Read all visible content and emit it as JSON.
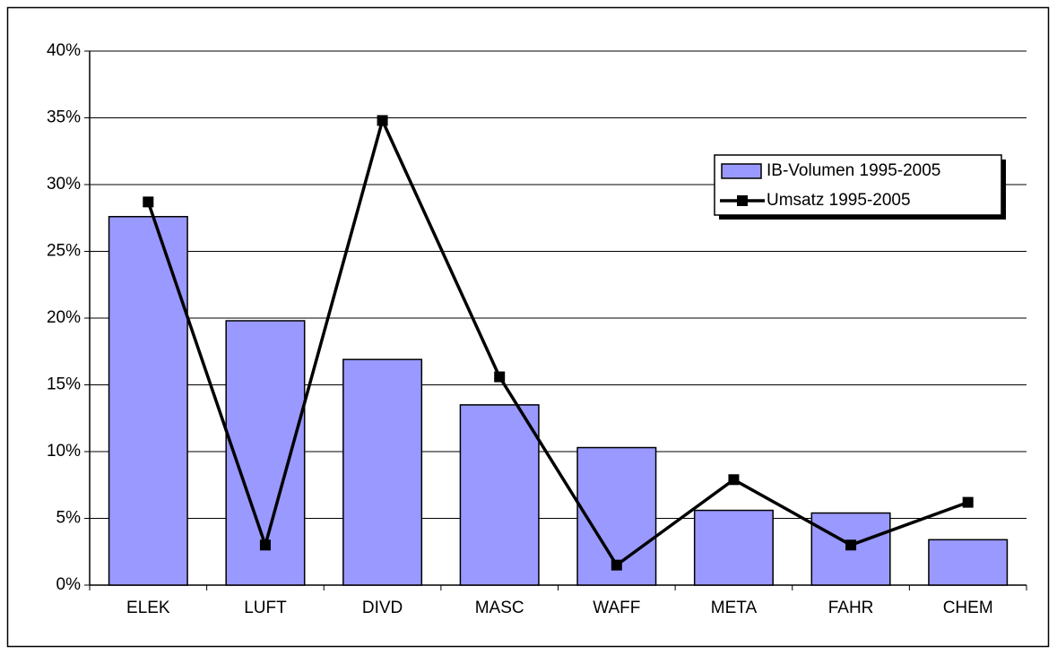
{
  "chart_data": {
    "type": "bar",
    "categories": [
      "ELEK",
      "LUFT",
      "DIVD",
      "MASC",
      "WAFF",
      "META",
      "FAHR",
      "CHEM"
    ],
    "series": [
      {
        "name": "IB-Volumen 1995-2005",
        "type": "bar",
        "color": "#9999ff",
        "values": [
          27.6,
          19.8,
          16.9,
          13.5,
          10.3,
          5.6,
          5.4,
          3.4
        ]
      },
      {
        "name": "Umsatz 1995-2005",
        "type": "line",
        "color": "#000000",
        "values": [
          28.7,
          3.0,
          34.8,
          15.6,
          1.5,
          7.9,
          3.0,
          6.2
        ]
      }
    ],
    "ylim": [
      0,
      40
    ],
    "yticks": [
      {
        "value": 0,
        "label": "0%"
      },
      {
        "value": 5,
        "label": "5%"
      },
      {
        "value": 10,
        "label": "10%"
      },
      {
        "value": 15,
        "label": "15%"
      },
      {
        "value": 20,
        "label": "20%"
      },
      {
        "value": 25,
        "label": "25%"
      },
      {
        "value": 30,
        "label": "30%"
      },
      {
        "value": 35,
        "label": "35%"
      },
      {
        "value": 40,
        "label": "40%"
      }
    ],
    "grid": true,
    "legend": "right"
  }
}
